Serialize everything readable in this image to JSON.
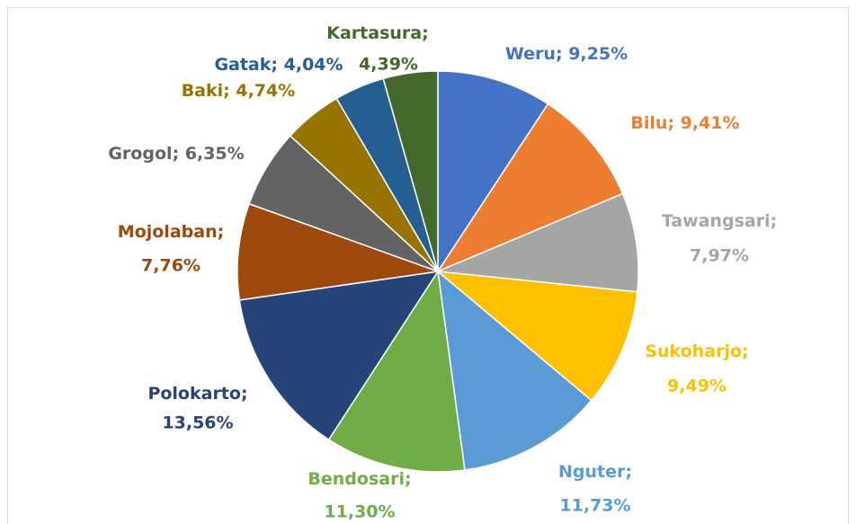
{
  "chart_data": {
    "type": "pie",
    "categories": [
      "Weru",
      "Bilu",
      "Tawangsari",
      "Sukoharjo",
      "Nguter",
      "Bendosari",
      "Polokarto",
      "Mojolaban",
      "Grogol",
      "Baki",
      "Gatak",
      "Kartasura"
    ],
    "values": [
      9.25,
      9.41,
      7.97,
      9.49,
      11.73,
      11.3,
      13.56,
      7.76,
      6.35,
      4.74,
      4.04,
      4.39
    ],
    "value_labels": [
      "9,25%",
      "9,41%",
      "7,97%",
      "9,49%",
      "11,73%",
      "11,30%",
      "13,56%",
      "7,76%",
      "6,35%",
      "4,74%",
      "4,04%",
      "4,39%"
    ],
    "label_separator": ";",
    "colors": [
      "#4472c4",
      "#ed7d31",
      "#a5a5a5",
      "#ffc000",
      "#5b9bd5",
      "#70ad47",
      "#264478",
      "#9e480e",
      "#636363",
      "#997300",
      "#255e91",
      "#43682b"
    ]
  }
}
